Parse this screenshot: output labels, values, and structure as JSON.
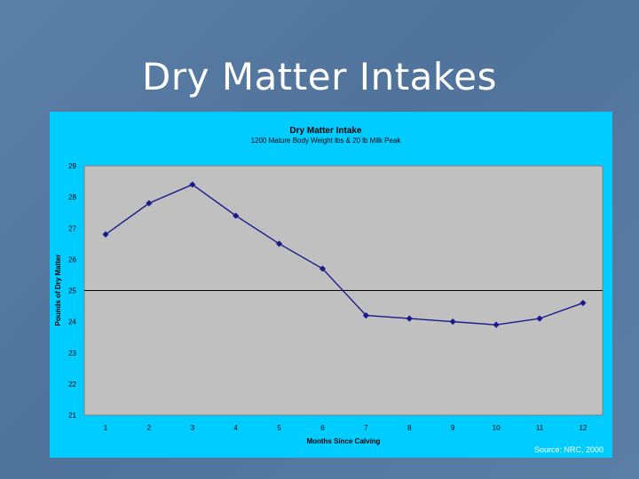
{
  "slide": {
    "title": "Dry Matter Intakes",
    "source": "Source: NRC, 2000"
  },
  "chart_data": {
    "type": "line",
    "title": "Dry Matter  Intake",
    "subtitle": "1200 Mature Body Weight lbs & 20 lb Milk Peak",
    "xlabel": "Months Since Calving",
    "ylabel": "Pounds of Dry Matter",
    "categories": [
      "1",
      "2",
      "3",
      "4",
      "5",
      "6",
      "7",
      "8",
      "9",
      "10",
      "11",
      "12"
    ],
    "values": [
      26.8,
      27.8,
      28.4,
      27.4,
      26.5,
      25.7,
      24.2,
      24.1,
      24.0,
      23.9,
      24.1,
      24.6
    ],
    "yticks": [
      "29",
      "28",
      "27",
      "26",
      "25",
      "24",
      "23",
      "22",
      "21"
    ],
    "ylim": [
      21,
      29
    ],
    "reference_line": 25,
    "grid": false,
    "colors": {
      "panel": "#00ccff",
      "plot_area": "#c0c0c0",
      "series": "#1a1a8c",
      "reference": "#000000"
    }
  }
}
